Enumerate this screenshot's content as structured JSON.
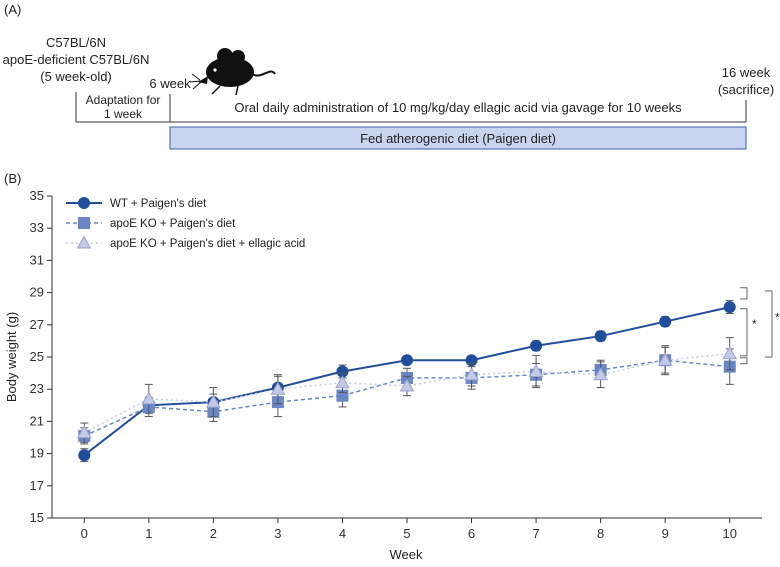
{
  "panel_a": {
    "label": "(A)",
    "strain_line1": "C57BL/6N",
    "strain_line2": "apoE-deficient C57BL/6N",
    "strain_line3": "(5 week-old)",
    "start_label": "6 week",
    "end_label_line1": "16 week",
    "end_label_line2": "(sacrifice)",
    "adaptation_line1": "Adaptation for",
    "adaptation_line2": "1 week",
    "administration": "Oral daily administration of 10 mg/kg/day ellagic acid via gavage for 10 weeks",
    "diet_bar": "Fed atherogenic diet (Paigen diet)",
    "diet_bar_color": "#c9d4ee",
    "diet_bar_border": "#3a5ea8"
  },
  "panel_b": {
    "label": "(B)"
  },
  "chart_data": {
    "type": "line",
    "title": "",
    "xlabel": "Week",
    "ylabel": "Body weight (g)",
    "x": [
      0,
      1,
      2,
      3,
      4,
      5,
      6,
      7,
      8,
      9,
      10
    ],
    "xlim": [
      -0.5,
      10.5
    ],
    "ylim": [
      15,
      35
    ],
    "yticks": [
      15,
      17,
      19,
      21,
      23,
      25,
      27,
      29,
      31,
      33,
      35
    ],
    "grid": false,
    "legend_position": "top-left",
    "series": [
      {
        "name": "WT + Paigen's diet",
        "values": [
          18.9,
          22.0,
          22.2,
          23.1,
          24.1,
          24.8,
          24.8,
          25.7,
          26.3,
          27.2,
          28.1
        ],
        "errors": [
          0.4,
          0.4,
          0.5,
          0.7,
          0.4,
          0.2,
          0.2,
          0.3,
          0.3,
          0.3,
          0.4
        ],
        "color": "#1f4e9c",
        "marker": "circle",
        "line_style": "solid"
      },
      {
        "name": "apoE KO + Paigen's diet",
        "values": [
          20.1,
          21.9,
          21.6,
          22.2,
          22.6,
          23.7,
          23.7,
          23.9,
          24.2,
          24.8,
          24.4
        ],
        "errors": [
          0.5,
          0.6,
          0.6,
          0.9,
          0.7,
          0.6,
          0.7,
          0.7,
          0.6,
          0.8,
          1.1
        ],
        "color": "#6a86c6",
        "marker": "square",
        "line_style": "dashed"
      },
      {
        "name": "apoE KO + Paigen's diet + ellagic acid",
        "values": [
          20.3,
          22.4,
          22.2,
          23.0,
          23.4,
          23.2,
          23.9,
          24.1,
          23.9,
          24.8,
          25.2
        ],
        "errors": [
          0.6,
          0.9,
          0.9,
          0.9,
          0.6,
          0.6,
          0.7,
          1.0,
          0.8,
          0.9,
          1.0
        ],
        "color": "#c3c9e6",
        "marker": "triangle",
        "line_style": "dotted"
      }
    ],
    "significance": [
      {
        "from": 28.1,
        "to": 24.4,
        "label": "*"
      },
      {
        "from": 28.1,
        "to": 25.2,
        "label": "*"
      }
    ]
  }
}
